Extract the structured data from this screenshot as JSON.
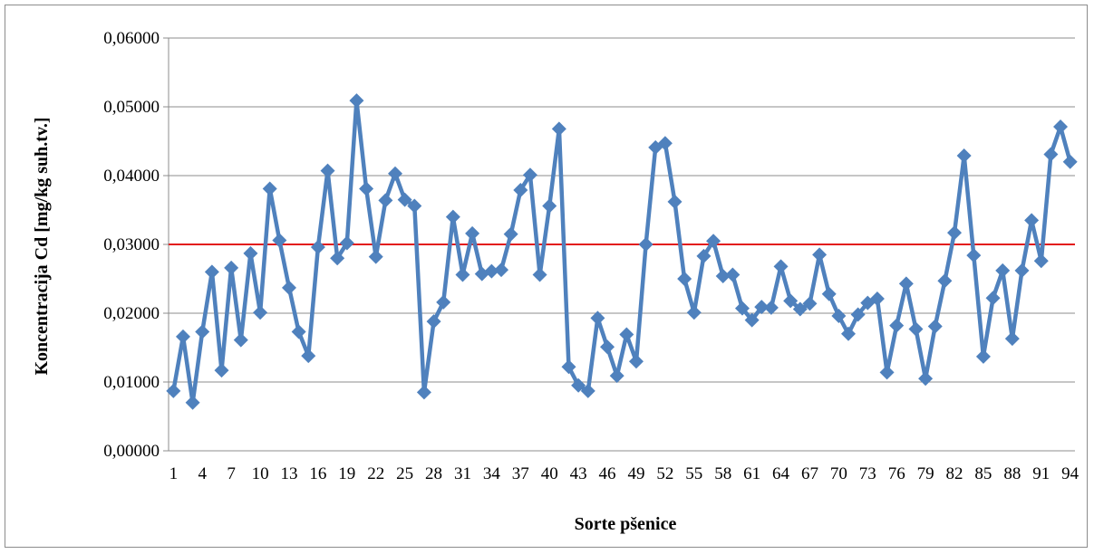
{
  "chart_data": {
    "type": "line",
    "title": "",
    "xlabel": "Sorte pšenice",
    "ylabel": "Koncentracija Cd [mg/kg suh.tv.]",
    "ylim": [
      0,
      0.06
    ],
    "y_ticks": [
      "0,00000",
      "0,01000",
      "0,02000",
      "0,03000",
      "0,04000",
      "0,05000",
      "0,06000"
    ],
    "x_tick_labels": [
      "1",
      "4",
      "7",
      "10",
      "13",
      "16",
      "19",
      "22",
      "25",
      "28",
      "31",
      "34",
      "37",
      "40",
      "43",
      "46",
      "49",
      "52",
      "55",
      "58",
      "61",
      "64",
      "67",
      "70",
      "73",
      "76",
      "79",
      "82",
      "85",
      "88",
      "91",
      "94"
    ],
    "grid": "horizontal",
    "legend": "none",
    "x": [
      1,
      2,
      3,
      4,
      5,
      6,
      7,
      8,
      9,
      10,
      11,
      12,
      13,
      14,
      15,
      16,
      17,
      18,
      19,
      20,
      21,
      22,
      23,
      24,
      25,
      26,
      27,
      28,
      29,
      30,
      31,
      32,
      33,
      34,
      35,
      36,
      37,
      38,
      39,
      40,
      41,
      42,
      43,
      44,
      45,
      46,
      47,
      48,
      49,
      50,
      51,
      52,
      53,
      54,
      55,
      56,
      57,
      58,
      59,
      60,
      61,
      62,
      63,
      64,
      65,
      66,
      67,
      68,
      69,
      70,
      71,
      72,
      73,
      74,
      75,
      76,
      77,
      78,
      79,
      80,
      81,
      82,
      83,
      84,
      85,
      86,
      87,
      88,
      89,
      90,
      91,
      92,
      93,
      94
    ],
    "series": [
      {
        "values": [
          0.0087,
          0.0166,
          0.007,
          0.0173,
          0.026,
          0.0117,
          0.0266,
          0.0161,
          0.0287,
          0.0201,
          0.0381,
          0.0306,
          0.0237,
          0.0173,
          0.0138,
          0.0296,
          0.0407,
          0.028,
          0.0302,
          0.0509,
          0.0381,
          0.0282,
          0.0364,
          0.0403,
          0.0365,
          0.0356,
          0.0085,
          0.0188,
          0.0216,
          0.034,
          0.0256,
          0.0316,
          0.0257,
          0.0261,
          0.0263,
          0.0315,
          0.0379,
          0.0401,
          0.0256,
          0.0356,
          0.0468,
          0.0122,
          0.0095,
          0.0087,
          0.0193,
          0.0151,
          0.0109,
          0.0169,
          0.013,
          0.03,
          0.0441,
          0.0447,
          0.0362,
          0.025,
          0.0201,
          0.0283,
          0.0305,
          0.0254,
          0.0256,
          0.0207,
          0.019,
          0.0209,
          0.0208,
          0.0268,
          0.0218,
          0.0206,
          0.0214,
          0.0285,
          0.0228,
          0.0196,
          0.017,
          0.0198,
          0.0215,
          0.0221,
          0.0114,
          0.0182,
          0.0243,
          0.0177,
          0.0105,
          0.0181,
          0.0247,
          0.0317,
          0.0429,
          0.0284,
          0.0137,
          0.0222,
          0.0262,
          0.0163,
          0.0262,
          0.0335,
          0.0276,
          0.0431,
          0.0471,
          0.042
        ],
        "color": "#4f81bd"
      }
    ],
    "reference_line": {
      "value": 0.03,
      "color": "#e31a1c"
    }
  }
}
